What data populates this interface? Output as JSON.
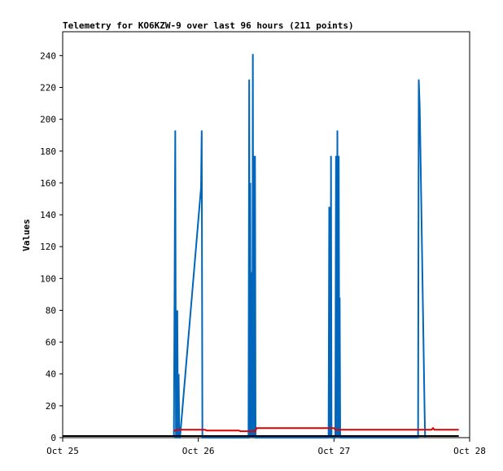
{
  "chart_data": {
    "type": "line",
    "title": "Telemetry for KO6KZW-9 over last 96 hours (211 points)",
    "xlabel": "",
    "ylabel": "Values",
    "x_ticks": [
      "Oct 25",
      "Oct 26",
      "Oct 27",
      "Oct 28"
    ],
    "xlim": [
      0,
      3
    ],
    "ylim": [
      0,
      255
    ],
    "y_ticks": [
      0,
      20,
      40,
      60,
      80,
      100,
      120,
      140,
      160,
      180,
      200,
      220,
      240
    ],
    "grid": false,
    "series": [
      {
        "color": "#0066bb",
        "points": [
          [
            0.82,
            0
          ],
          [
            0.83,
            193
          ],
          [
            0.835,
            0
          ],
          [
            0.84,
            0
          ],
          [
            0.845,
            80
          ],
          [
            0.85,
            0
          ],
          [
            0.855,
            40
          ],
          [
            0.86,
            0
          ],
          [
            0.865,
            0
          ],
          [
            1.02,
            157
          ],
          [
            1.025,
            193
          ],
          [
            1.03,
            0
          ],
          [
            1.37,
            0
          ],
          [
            1.375,
            225
          ],
          [
            1.38,
            0
          ],
          [
            1.383,
            160
          ],
          [
            1.386,
            0
          ],
          [
            1.389,
            104
          ],
          [
            1.392,
            0
          ],
          [
            1.395,
            80
          ],
          [
            1.398,
            0
          ],
          [
            1.402,
            241
          ],
          [
            1.406,
            0
          ],
          [
            1.41,
            177
          ],
          [
            1.414,
            0
          ],
          [
            1.418,
            177
          ],
          [
            1.422,
            0
          ],
          [
            1.96,
            0
          ],
          [
            1.965,
            145
          ],
          [
            1.97,
            0
          ],
          [
            1.972,
            145
          ],
          [
            1.975,
            0
          ],
          [
            1.978,
            177
          ],
          [
            1.982,
            0
          ],
          [
            2.01,
            0
          ],
          [
            2.015,
            177
          ],
          [
            2.02,
            0
          ],
          [
            2.025,
            193
          ],
          [
            2.03,
            0
          ],
          [
            2.035,
            177
          ],
          [
            2.04,
            0
          ],
          [
            2.042,
            88
          ],
          [
            2.046,
            0
          ],
          [
            2.62,
            0
          ],
          [
            2.625,
            225
          ],
          [
            2.632,
            208
          ],
          [
            2.638,
            177
          ],
          [
            2.644,
            145
          ],
          [
            2.65,
            112
          ],
          [
            2.656,
            80
          ],
          [
            2.662,
            48
          ],
          [
            2.668,
            16
          ],
          [
            2.672,
            0
          ]
        ]
      },
      {
        "color": "#dd0000",
        "points": [
          [
            0.82,
            4
          ],
          [
            0.84,
            5
          ],
          [
            1.05,
            5
          ],
          [
            1.06,
            4.5
          ],
          [
            1.3,
            4.5
          ],
          [
            1.31,
            4
          ],
          [
            1.42,
            4
          ],
          [
            1.43,
            6
          ],
          [
            2.0,
            6
          ],
          [
            2.01,
            5
          ],
          [
            2.72,
            5
          ],
          [
            2.73,
            6
          ],
          [
            2.74,
            5
          ],
          [
            2.92,
            5
          ]
        ]
      },
      {
        "color": "#000000",
        "points": [
          [
            0,
            1
          ],
          [
            2.92,
            1
          ]
        ]
      }
    ]
  }
}
